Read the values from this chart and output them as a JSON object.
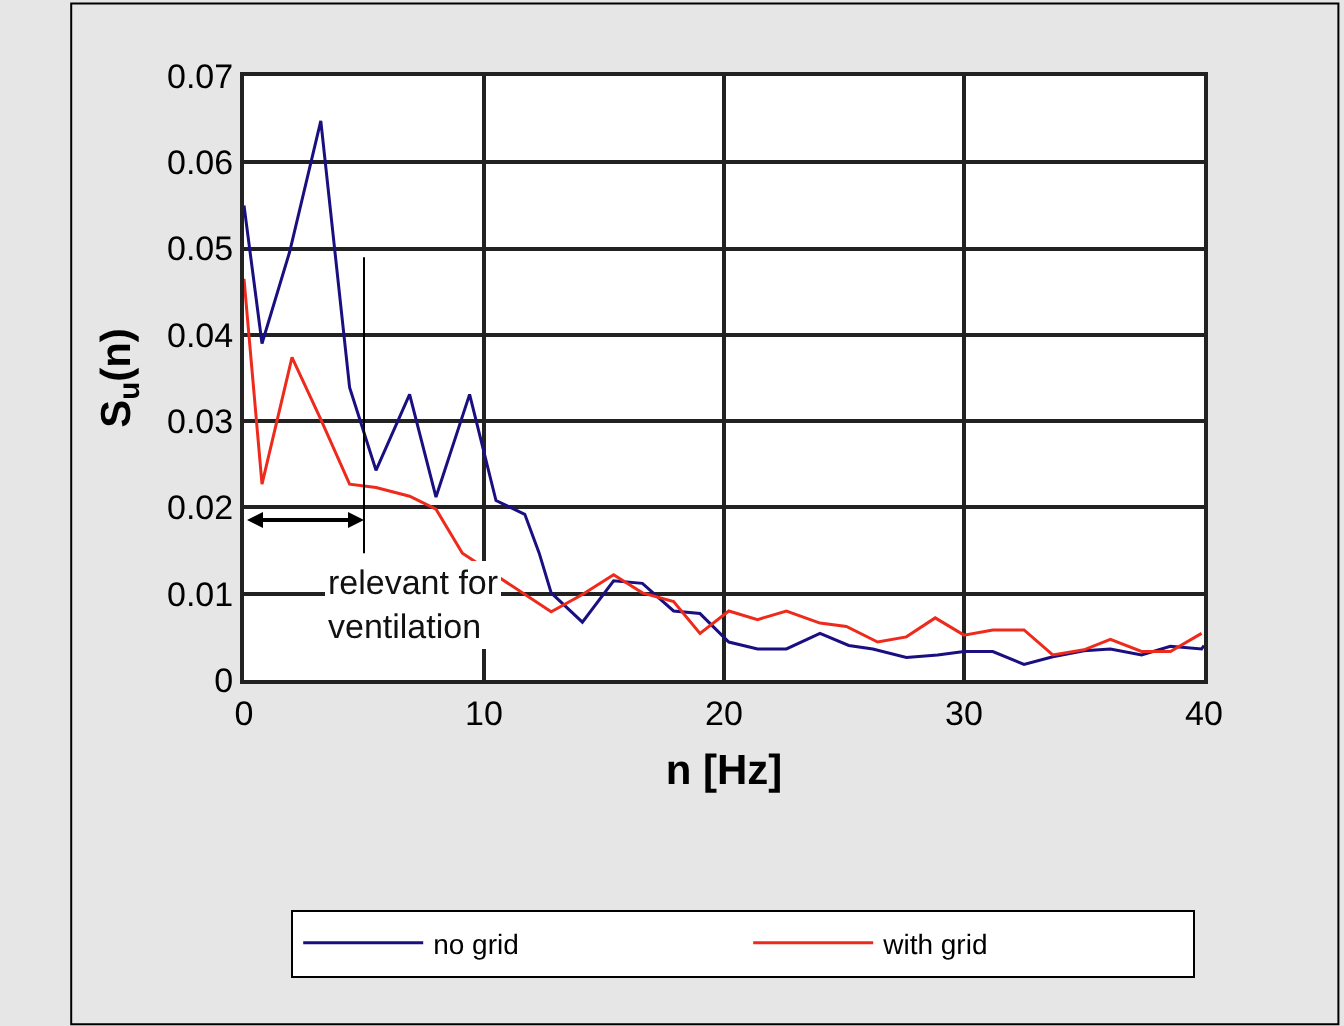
{
  "chart_data": {
    "type": "line",
    "xlabel": "n [Hz]",
    "ylabel": "S$_{u}$(n)",
    "xlim": [
      0,
      40
    ],
    "xticks": [
      0,
      10,
      20,
      30,
      40
    ],
    "ylim": [
      0,
      0.07
    ],
    "yticks": [
      0,
      0.01,
      0.02,
      0.03,
      0.04,
      0.05,
      0.06,
      0.07
    ],
    "grid": true,
    "legend": "bottom",
    "marker": "none",
    "line_style": "solid",
    "series": [
      {
        "name": "no grid",
        "color": "#1a0f80",
        "x": [
          0,
          0.75,
          1.9,
          3.2,
          4.4,
          5.5,
          6.9,
          8.0,
          9.4,
          10.5,
          11.7,
          12.3,
          12.8,
          14.1,
          15.4,
          16.6,
          17.9,
          19.0,
          20.2,
          21.4,
          22.6,
          24.0,
          25.2,
          26.2,
          27.6,
          28.9,
          30.0,
          31.2,
          32.5,
          33.7,
          35.0,
          36.1,
          37.4,
          38.6,
          39.9,
          40
        ],
        "values": [
          0.055,
          0.039,
          0.0496,
          0.0648,
          0.0339,
          0.0243,
          0.0331,
          0.0212,
          0.0331,
          0.0208,
          0.0192,
          0.0147,
          0.0101,
          0.0067,
          0.0115,
          0.0112,
          0.008,
          0.0077,
          0.0044,
          0.0036,
          0.0036,
          0.0054,
          0.004,
          0.0036,
          0.0026,
          0.0029,
          0.0033,
          0.0033,
          0.0018,
          0.0027,
          0.0034,
          0.0036,
          0.0029,
          0.0039,
          0.0036,
          0.004
        ]
      },
      {
        "name": "with grid",
        "color": "#ee2a1c",
        "x": [
          0,
          0.75,
          2.0,
          3.2,
          4.4,
          5.5,
          6.9,
          8.0,
          9.1,
          12.8,
          14.1,
          15.4,
          16.6,
          17.9,
          19.0,
          20.2,
          21.4,
          22.6,
          24.0,
          25.1,
          26.4,
          27.6,
          28.8,
          30.0,
          31.2,
          32.5,
          33.7,
          35.0,
          36.1,
          37.4,
          38.6,
          39.9
        ],
        "values": [
          0.0465,
          0.0227,
          0.0374,
          0.0302,
          0.0227,
          0.0223,
          0.0213,
          0.0198,
          0.0147,
          0.0079,
          0.0099,
          0.0122,
          0.0101,
          0.0091,
          0.0054,
          0.008,
          0.007,
          0.008,
          0.0066,
          0.0062,
          0.0044,
          0.005,
          0.0072,
          0.0052,
          0.0058,
          0.0058,
          0.0029,
          0.0035,
          0.0047,
          0.0033,
          0.0033,
          0.0054
        ]
      }
    ],
    "ref_lines": [
      {
        "axis": "x",
        "value": 5,
        "label": "relevant for ventilation"
      }
    ]
  }
}
